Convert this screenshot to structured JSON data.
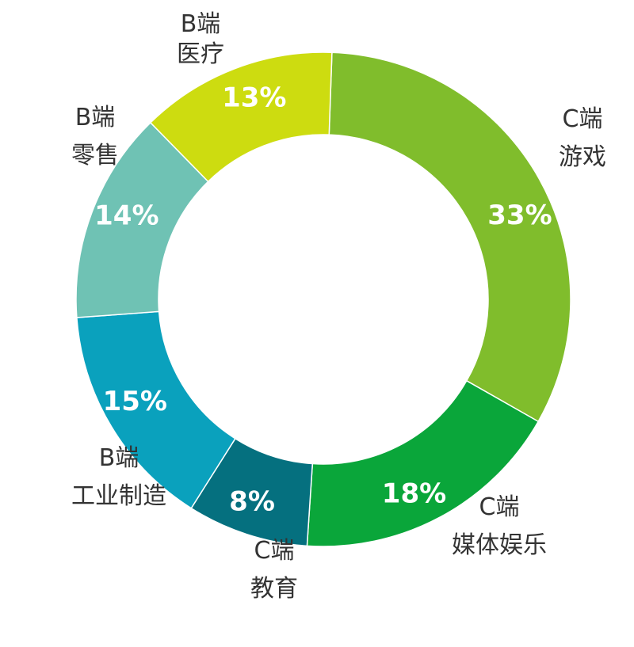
{
  "chart_data": {
    "type": "pie",
    "donut": true,
    "slices": [
      {
        "line1": "C端",
        "line2": "游戏",
        "value": 33,
        "value_label": "33%",
        "color": "#80bd2c"
      },
      {
        "line1": "C端",
        "line2": "媒体娱乐",
        "value": 18,
        "value_label": "18%",
        "color": "#0aa63a"
      },
      {
        "line1": "C端",
        "line2": "教育",
        "value": 8,
        "value_label": "8%",
        "color": "#05707f"
      },
      {
        "line1": "B端",
        "line2": "工业制造",
        "value": 15,
        "value_label": "15%",
        "color": "#0aa1bd"
      },
      {
        "line1": "B端",
        "line2": "零售",
        "value": 14,
        "value_label": "14%",
        "color": "#6fc2b4"
      },
      {
        "line1": "B端",
        "line2": "医疗",
        "value": 13,
        "value_label": "13%",
        "color": "#cddc10"
      }
    ]
  }
}
